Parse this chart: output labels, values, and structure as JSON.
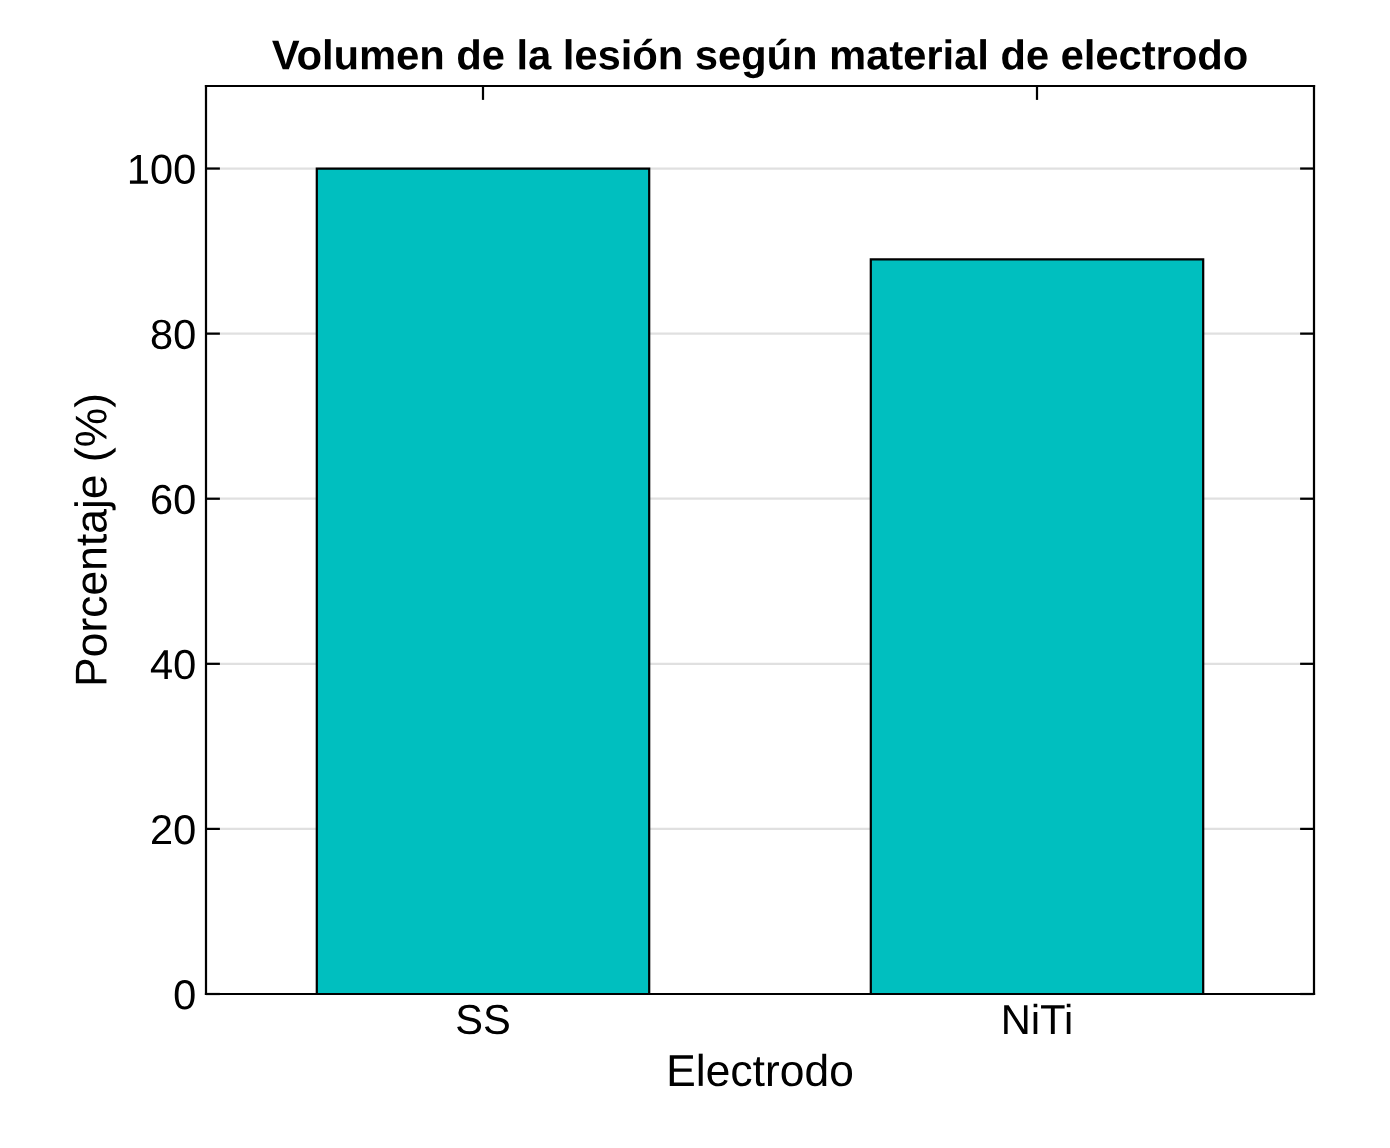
{
  "chart_data": {
    "type": "bar",
    "title": "Volumen de la lesión según material de electrodo",
    "xlabel": "Electrodo",
    "ylabel": "Porcentaje (%)",
    "categories": [
      "SS",
      "NiTi"
    ],
    "values": [
      100,
      89
    ],
    "color": "#00bfbf",
    "ylim": [
      0,
      110
    ],
    "yticks": [
      0,
      20,
      40,
      60,
      80,
      100
    ],
    "grid": "y"
  }
}
